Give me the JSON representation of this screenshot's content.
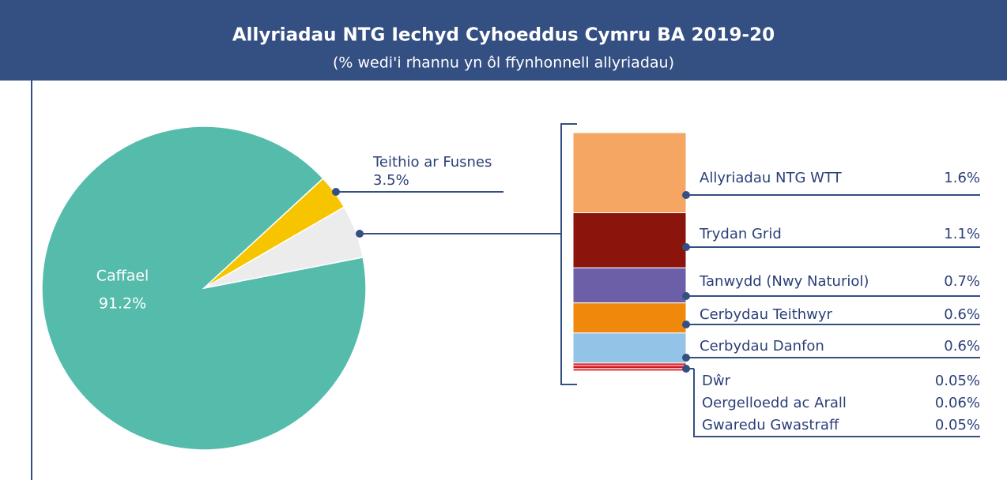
{
  "chart_data": [
    {
      "type": "pie",
      "title": "Allyriadau NTG Iechyd Cyhoeddus Cymru BA 2019-20",
      "subtitle": "(% wedi'i rhannu yn ôl ffynhonnell allyriadau)",
      "categories": [
        "Caffael",
        "Teithio ar Fusnes",
        null
      ],
      "values": [
        91.2,
        3.5,
        5.3
      ],
      "value_labels": [
        "91.2%",
        "3.5%",
        null
      ],
      "colors": [
        "#55bcab",
        "#f7c500",
        "#ececec"
      ]
    },
    {
      "type": "stacked-bar",
      "categories": [
        "Allyriadau NTG WTT",
        "Trydan Grid",
        "Tanwydd (Nwy Naturiol)",
        "Cerbydau Teithwyr",
        "Cerbydau Danfon",
        "Dŵr",
        "Oergelloedd ac Arall",
        "Gwaredu Gwastraff"
      ],
      "values": [
        1.6,
        1.1,
        0.7,
        0.6,
        0.6,
        0.05,
        0.06,
        0.05
      ],
      "value_labels": [
        "1.6%",
        "1.1%",
        "0.7%",
        "0.6%",
        "0.6%",
        "0.05%",
        "0.06%",
        "0.05%"
      ],
      "colors": [
        "#f5a663",
        "#8b140c",
        "#6c5fa7",
        "#f0890b",
        "#94c3e8",
        "#e0202a",
        "#d21822",
        "#e83a3a"
      ]
    }
  ]
}
